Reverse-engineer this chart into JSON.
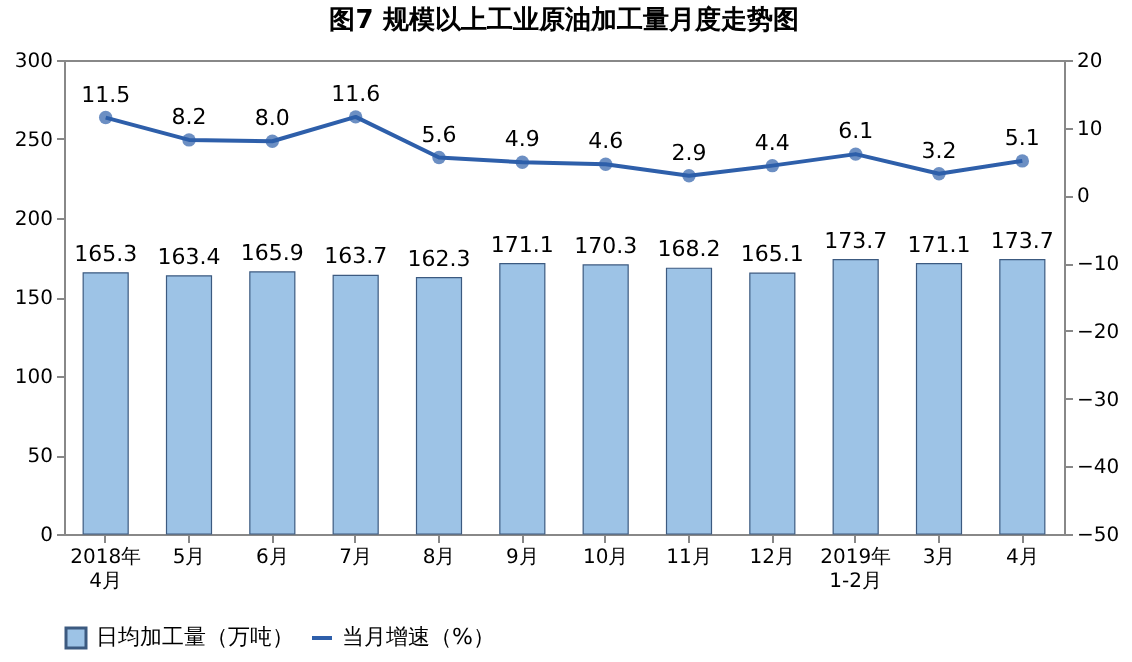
{
  "chart_data": {
    "type": "bar",
    "title": "图7  规模以上工业原油加工量月度走势图",
    "categories": [
      "2018年4月",
      "5月",
      "6月",
      "7月",
      "8月",
      "9月",
      "10月",
      "11月",
      "12月",
      "2019年1-2月",
      "3月",
      "4月"
    ],
    "series": [
      {
        "name": "日均加工量（万吨）",
        "color": "#9dc3e6",
        "values": [
          165.3,
          163.4,
          165.9,
          163.7,
          162.3,
          171.1,
          170.3,
          168.2,
          165.1,
          173.7,
          171.1,
          173.7
        ],
        "value_labels": [
          "165.3",
          "163.4",
          "165.9",
          "163.7",
          "162.3",
          "171.1",
          "170.3",
          "168.2",
          "165.1",
          "173.7",
          "171.1",
          "173.7"
        ]
      },
      {
        "name": "当月增速（%）",
        "type": "line",
        "axis": "y2",
        "color": "#2e5faa",
        "values": [
          11.5,
          8.2,
          8.0,
          11.6,
          5.6,
          4.9,
          4.6,
          2.9,
          4.4,
          6.1,
          3.2,
          5.1
        ],
        "value_labels": [
          "11.5",
          "8.2",
          "8.0",
          "11.6",
          "5.6",
          "4.9",
          "4.6",
          "2.9",
          "4.4",
          "6.1",
          "3.2",
          "5.1"
        ]
      }
    ],
    "ylim": [
      0,
      300
    ],
    "yticks": [
      0,
      50,
      100,
      150,
      200,
      250,
      300
    ],
    "y2lim": [
      -50,
      20
    ],
    "y2ticks": [
      -50,
      -40,
      -30,
      -20,
      -10,
      0,
      10,
      20
    ],
    "marker": "circle",
    "legend": "bottom"
  }
}
